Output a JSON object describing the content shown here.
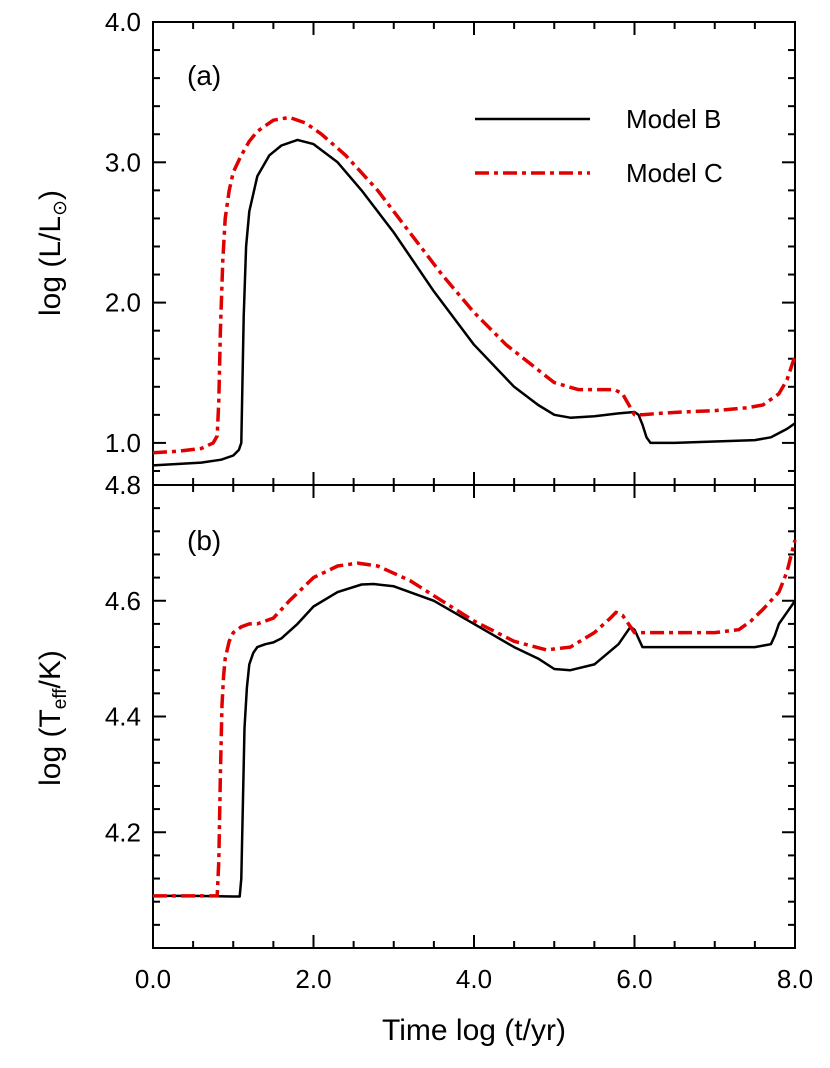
{
  "chart_data": [
    {
      "type": "line",
      "panel_label": "(a)",
      "ylabel_main": "log (L/L",
      "ylabel_sub": "⊙",
      "ylabel_end": ")",
      "xlim": [
        0,
        8
      ],
      "ylim": [
        0.7,
        4.0
      ],
      "major_yticks": [
        "4.0",
        "3.0",
        "2.0",
        "1.0"
      ],
      "bottom_label": "4.8",
      "legend": {
        "placement": "top-right",
        "entries": [
          "Model B",
          "Model C"
        ]
      },
      "series": [
        {
          "name": "Model B",
          "color": "#000000",
          "style": "solid",
          "x": [
            0,
            0.3,
            0.6,
            0.85,
            1.0,
            1.07,
            1.1,
            1.11,
            1.13,
            1.16,
            1.2,
            1.3,
            1.45,
            1.6,
            1.8,
            2.0,
            2.3,
            2.6,
            3.0,
            3.5,
            4.0,
            4.5,
            4.8,
            5.0,
            5.2,
            5.5,
            5.8,
            6.0,
            6.05,
            6.1,
            6.15,
            6.2,
            6.3,
            6.5,
            7.0,
            7.5,
            7.7,
            7.8,
            7.9,
            8.0
          ],
          "y": [
            0.84,
            0.85,
            0.86,
            0.88,
            0.91,
            0.95,
            1.0,
            1.3,
            1.9,
            2.4,
            2.65,
            2.9,
            3.05,
            3.12,
            3.16,
            3.13,
            3.0,
            2.8,
            2.5,
            2.08,
            1.7,
            1.4,
            1.27,
            1.2,
            1.18,
            1.19,
            1.21,
            1.22,
            1.2,
            1.13,
            1.04,
            1.0,
            1.0,
            1.0,
            1.01,
            1.02,
            1.04,
            1.07,
            1.1,
            1.14
          ]
        },
        {
          "name": "Model C",
          "color": "#e00000",
          "style": "dashdot",
          "x": [
            0,
            0.3,
            0.6,
            0.75,
            0.8,
            0.82,
            0.84,
            0.87,
            0.9,
            0.95,
            1.0,
            1.1,
            1.2,
            1.3,
            1.5,
            1.7,
            1.9,
            2.1,
            2.4,
            2.8,
            3.2,
            3.6,
            4.0,
            4.4,
            4.8,
            5.0,
            5.3,
            5.6,
            5.75,
            5.85,
            5.95,
            6.0,
            6.1,
            6.3,
            6.6,
            7.0,
            7.4,
            7.6,
            7.8,
            7.9,
            8.0
          ],
          "y": [
            0.93,
            0.94,
            0.96,
            1.0,
            1.05,
            1.3,
            1.8,
            2.3,
            2.6,
            2.8,
            2.93,
            3.05,
            3.15,
            3.22,
            3.3,
            3.32,
            3.28,
            3.2,
            3.05,
            2.8,
            2.5,
            2.2,
            1.93,
            1.7,
            1.52,
            1.43,
            1.38,
            1.38,
            1.38,
            1.35,
            1.25,
            1.2,
            1.2,
            1.21,
            1.22,
            1.23,
            1.25,
            1.27,
            1.35,
            1.45,
            1.62
          ]
        }
      ]
    },
    {
      "type": "line",
      "panel_label": "(b)",
      "ylabel_main": "log (T",
      "ylabel_sub": "eff",
      "ylabel_end": "/K)",
      "xlabel": "Time  log (t/yr)",
      "xlim": [
        0,
        8
      ],
      "ylim": [
        4.0,
        4.8
      ],
      "major_yticks": [
        "4.6",
        "4.4",
        "4.2"
      ],
      "xtick_labels": [
        "0.0",
        "2.0",
        "4.0",
        "6.0",
        "8.0"
      ],
      "series": [
        {
          "name": "Model B",
          "color": "#000000",
          "style": "solid",
          "x": [
            0,
            0.5,
            1.0,
            1.08,
            1.1,
            1.12,
            1.14,
            1.17,
            1.2,
            1.25,
            1.3,
            1.4,
            1.5,
            1.6,
            1.8,
            2.0,
            2.3,
            2.6,
            2.75,
            3.0,
            3.5,
            4.0,
            4.5,
            4.8,
            5.0,
            5.2,
            5.5,
            5.8,
            5.95,
            6.0,
            6.1,
            6.2,
            6.4,
            7.0,
            7.5,
            7.7,
            7.75,
            7.8,
            7.9,
            8.0
          ],
          "y": [
            4.09,
            4.09,
            4.089,
            4.089,
            4.12,
            4.25,
            4.38,
            4.45,
            4.49,
            4.51,
            4.52,
            4.525,
            4.528,
            4.535,
            4.56,
            4.59,
            4.615,
            4.628,
            4.629,
            4.625,
            4.6,
            4.56,
            4.52,
            4.5,
            4.482,
            4.48,
            4.49,
            4.525,
            4.555,
            4.55,
            4.52,
            4.52,
            4.52,
            4.52,
            4.52,
            4.525,
            4.54,
            4.56,
            4.58,
            4.6
          ]
        },
        {
          "name": "Model C",
          "color": "#e00000",
          "style": "dashdot",
          "x": [
            0,
            0.5,
            0.8,
            0.82,
            0.84,
            0.86,
            0.88,
            0.9,
            0.95,
            1.0,
            1.1,
            1.2,
            1.3,
            1.5,
            1.7,
            2.0,
            2.3,
            2.55,
            2.8,
            3.2,
            3.6,
            4.0,
            4.5,
            4.9,
            5.2,
            5.5,
            5.7,
            5.77,
            5.85,
            5.95,
            6.0,
            6.2,
            6.5,
            7.0,
            7.3,
            7.45,
            7.6,
            7.8,
            7.9,
            8.0
          ],
          "y": [
            4.09,
            4.09,
            4.09,
            4.15,
            4.3,
            4.42,
            4.47,
            4.5,
            4.53,
            4.545,
            4.555,
            4.56,
            4.56,
            4.57,
            4.6,
            4.64,
            4.66,
            4.665,
            4.66,
            4.635,
            4.6,
            4.565,
            4.53,
            4.515,
            4.52,
            4.545,
            4.57,
            4.58,
            4.575,
            4.555,
            4.545,
            4.545,
            4.545,
            4.545,
            4.55,
            4.565,
            4.585,
            4.615,
            4.65,
            4.705
          ]
        }
      ]
    }
  ]
}
